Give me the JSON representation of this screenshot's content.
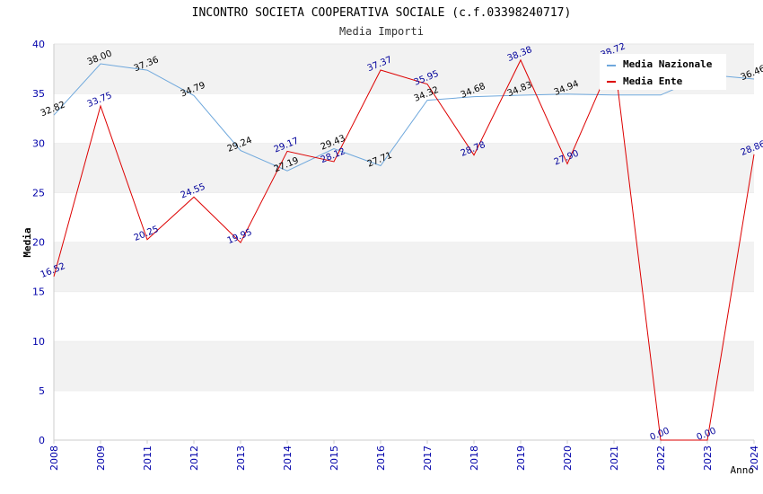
{
  "chart_data": {
    "type": "line",
    "title": "INCONTRO SOCIETA COOPERATIVA SOCIALE (c.f.03398240717)",
    "subtitle": "Media Importi",
    "xlabel": "Anno",
    "ylabel": "Media",
    "ylim": [
      0,
      40
    ],
    "yticks": [
      "0",
      "5",
      "10",
      "15",
      "20",
      "25",
      "30",
      "35",
      "40"
    ],
    "categories": [
      "2008",
      "2009",
      "2011",
      "2012",
      "2013",
      "2014",
      "2015",
      "2016",
      "2017",
      "2018",
      "2019",
      "2020",
      "2021",
      "2022",
      "2023",
      "2024"
    ],
    "grid": "horizontal-bands",
    "legend_position": "top-right",
    "series": [
      {
        "name": "Media Nazionale",
        "color": "#6fa8dc",
        "values": [
          32.82,
          38.0,
          37.36,
          34.79,
          29.24,
          27.19,
          29.43,
          27.71,
          34.32,
          34.68,
          34.83,
          34.94,
          34.85,
          34.85,
          36.9,
          36.46
        ],
        "labels": [
          "32.82",
          "38.00",
          "37.36",
          "34.79",
          "29.24",
          "27.19",
          "29.43",
          "27.71",
          "34.32",
          "34.68",
          "34.83",
          "34.94",
          "",
          "",
          "",
          "36.46"
        ]
      },
      {
        "name": "Media Ente",
        "color": "#dd0000",
        "values": [
          16.52,
          33.75,
          20.25,
          24.55,
          19.95,
          29.17,
          28.12,
          37.37,
          35.95,
          28.78,
          38.38,
          27.9,
          38.72,
          0.0,
          0.0,
          28.86
        ],
        "labels": [
          "16.52",
          "33.75",
          "20.25",
          "24.55",
          "19.95",
          "29.17",
          "28.12",
          "37.37",
          "35.95",
          "28.78",
          "38.38",
          "27.90",
          "38.72",
          "0.00",
          "0.00",
          "28.86"
        ]
      }
    ]
  }
}
